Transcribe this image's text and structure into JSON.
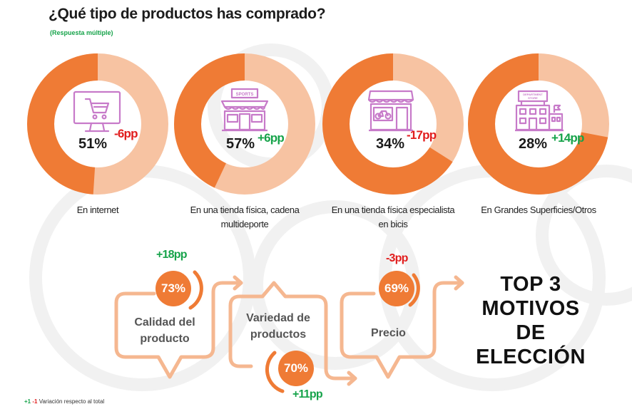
{
  "header": {
    "title": "¿Qué tipo de productos has comprado?",
    "subtitle": "(Respuesta múltiple)"
  },
  "colors": {
    "accent": "#ef7b35",
    "accent_light": "#f7c3a2",
    "positive": "#16a34a",
    "negative": "#e11d1d",
    "icon": "#c77ac9"
  },
  "chart_data": [
    {
      "type": "pie",
      "title": "¿Qué tipo de productos has comprado?",
      "categories": [
        "En internet",
        "En una tienda física, cadena multideporte",
        "En una tienda física especialista en bicis",
        "En Grandes Superficies/Otros"
      ],
      "values": [
        51,
        57,
        34,
        28
      ],
      "unit": "%",
      "changes_pp": [
        -6,
        6,
        -17,
        14
      ],
      "items": [
        {
          "label_line1": "En internet",
          "label_line2": "",
          "value": 51,
          "value_label": "51%",
          "change_label": "-6pp",
          "icon": "computer-cart-icon"
        },
        {
          "label_line1": "En una tienda física, cadena",
          "label_line2": "multideporte",
          "value": 57,
          "value_label": "57%",
          "change_label": "+6pp",
          "icon": "sports-store-icon"
        },
        {
          "label_line1": "En una tienda física especialista",
          "label_line2": "en bicis",
          "value": 34,
          "value_label": "34%",
          "change_label": "-17pp",
          "icon": "bike-shop-icon"
        },
        {
          "label_line1": "En Grandes Superficies/Otros",
          "label_line2": "",
          "value": 28,
          "value_label": "28%",
          "change_label": "+14pp",
          "icon": "department-store-icon"
        }
      ]
    },
    {
      "type": "bar",
      "title": "TOP 3 MOTIVOS DE ELECCIÓN",
      "categories": [
        "Calidad del producto",
        "Variedad de productos",
        "Precio"
      ],
      "values": [
        73,
        70,
        69
      ],
      "unit": "%",
      "changes_pp": [
        18,
        11,
        -3
      ]
    }
  ],
  "reasons": [
    {
      "line1": "Calidad del",
      "line2": "producto",
      "value_label": "73%",
      "change_label": "+18pp"
    },
    {
      "line1": "Variedad de",
      "line2": "productos",
      "value_label": "70%",
      "change_label": "+11pp"
    },
    {
      "line1": "Precio",
      "line2": "",
      "value_label": "69%",
      "change_label": "-3pp"
    }
  ],
  "top3": {
    "line1": "TOP 3",
    "line2": "MOTIVOS DE",
    "line3": "ELECCIÓN"
  },
  "footnote": {
    "pos": "+1",
    "neg": "-1",
    "text": "Variación respecto al total"
  }
}
